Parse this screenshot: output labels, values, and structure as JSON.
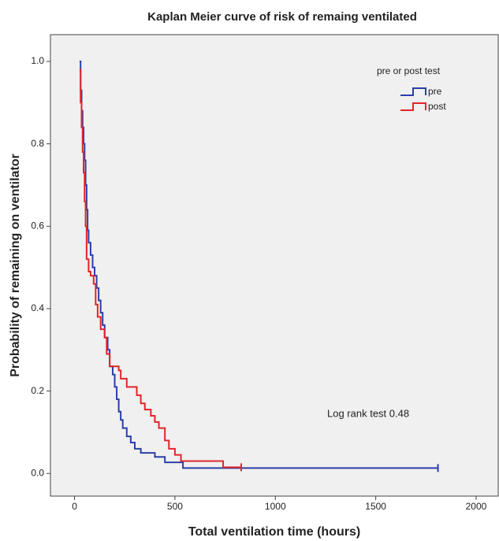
{
  "chart_data": {
    "type": "step",
    "title": "Kaplan Meier curve of risk of remaing ventilated",
    "x_label": "Total ventilation time (hours)",
    "y_label": "Probability of remaining on ventilator",
    "legend_title": "pre or post test",
    "legend_position": "upper right",
    "annotation": "Log rank test 0.48",
    "xlim": [
      -120,
      2110
    ],
    "ylim": [
      -0.055,
      1.065
    ],
    "xticks": [
      0,
      500,
      1000,
      1500,
      2000
    ],
    "yticks": [
      {
        "value": 0,
        "label": "0.0"
      },
      {
        "value": 0.2,
        "label": "0.2"
      },
      {
        "value": 0.4,
        "label": "0.4"
      },
      {
        "value": 0.6,
        "label": "0.6"
      },
      {
        "value": 0.8,
        "label": "0.8"
      },
      {
        "value": 1,
        "label": "1.0"
      }
    ],
    "series": [
      {
        "name": "pre",
        "color": "#2b3fa8",
        "x": [
          25,
          30,
          35,
          40,
          45,
          50,
          55,
          60,
          65,
          70,
          80,
          90,
          100,
          110,
          120,
          130,
          140,
          150,
          165,
          175,
          190,
          200,
          210,
          220,
          230,
          240,
          260,
          280,
          300,
          330,
          400,
          450,
          540,
          1810
        ],
        "values": [
          1.0,
          0.93,
          0.88,
          0.84,
          0.8,
          0.76,
          0.7,
          0.64,
          0.59,
          0.56,
          0.53,
          0.5,
          0.48,
          0.45,
          0.42,
          0.39,
          0.36,
          0.33,
          0.3,
          0.26,
          0.24,
          0.21,
          0.18,
          0.15,
          0.13,
          0.11,
          0.09,
          0.075,
          0.06,
          0.05,
          0.04,
          0.027,
          0.013,
          0.013
        ]
      },
      {
        "name": "post",
        "color": "#e0262b",
        "x": [
          25,
          30,
          35,
          40,
          45,
          50,
          55,
          60,
          70,
          80,
          95,
          105,
          115,
          130,
          150,
          160,
          175,
          220,
          230,
          260,
          310,
          330,
          350,
          380,
          400,
          420,
          450,
          470,
          500,
          530,
          740,
          830
        ],
        "values": [
          0.98,
          0.9,
          0.84,
          0.78,
          0.73,
          0.66,
          0.6,
          0.52,
          0.49,
          0.48,
          0.46,
          0.41,
          0.38,
          0.35,
          0.33,
          0.29,
          0.26,
          0.25,
          0.23,
          0.21,
          0.19,
          0.17,
          0.155,
          0.14,
          0.125,
          0.11,
          0.08,
          0.06,
          0.045,
          0.03,
          0.015,
          0.015
        ]
      }
    ]
  }
}
